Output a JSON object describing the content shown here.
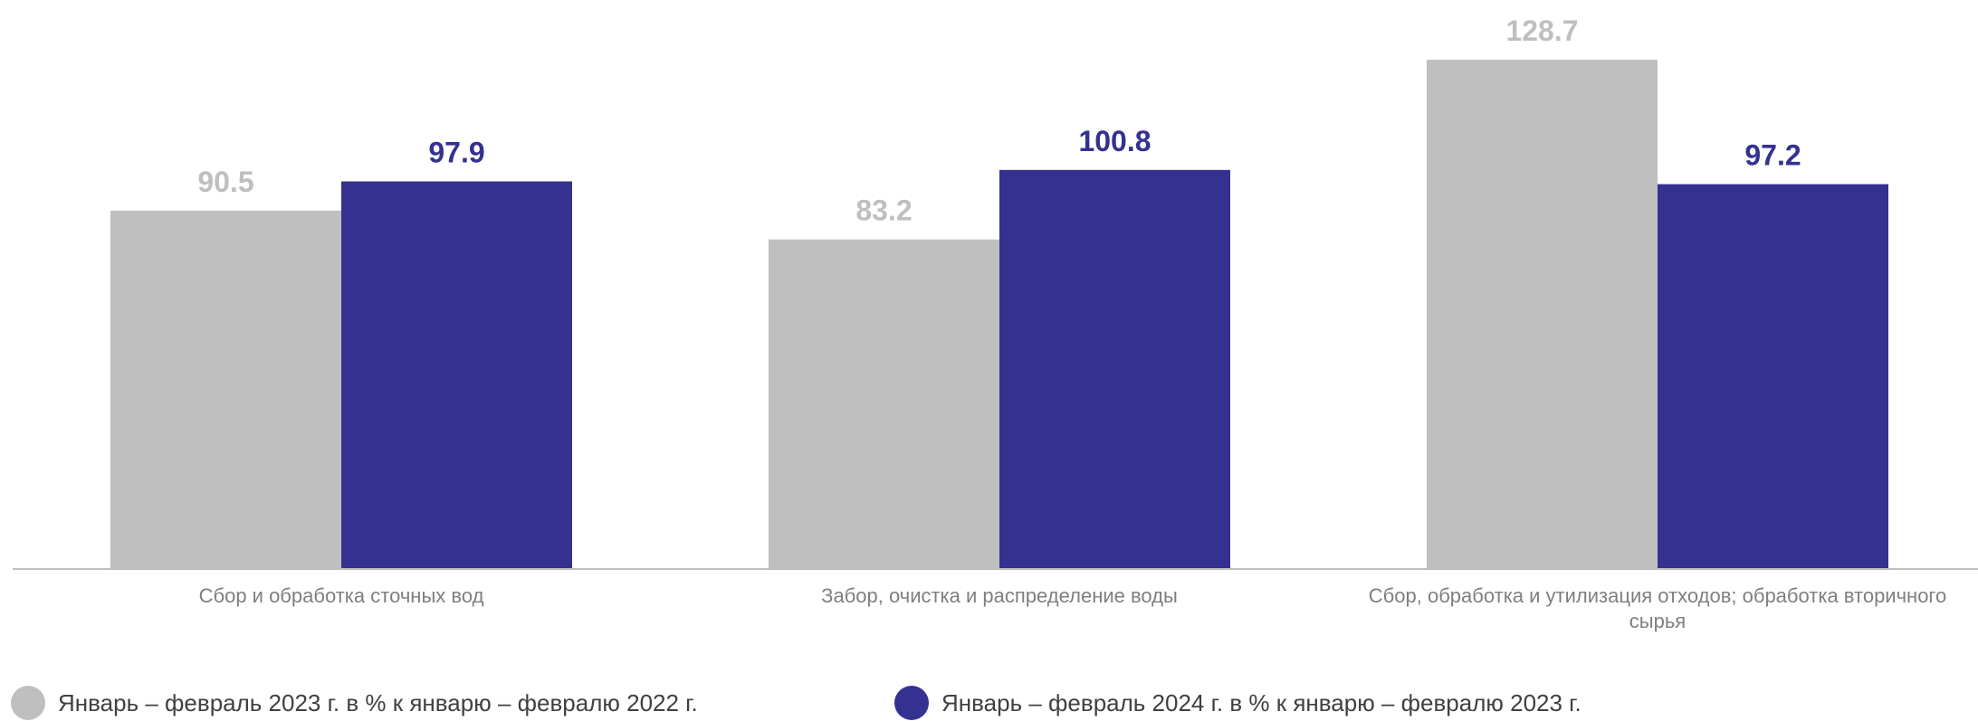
{
  "chart_data": {
    "type": "bar",
    "categories": [
      "Сбор и обработка сточных вод",
      "Забор, очистка и распределение воды",
      [
        "Сбор, обработка и утилизация отходов; обработка вторичного",
        "сырья"
      ]
    ],
    "series": [
      {
        "name": "Январь – февраль 2023 г. в % к январю – февралю 2022 г.",
        "values": [
          90.5,
          83.2,
          128.7
        ],
        "color": "#bfbfbf"
      },
      {
        "name": "Январь – февраль 2024 г. в % к январю – февралю 2023 г.",
        "values": [
          97.9,
          100.8,
          97.2
        ],
        "color": "#353191"
      }
    ],
    "value_labels": [
      [
        "90.5",
        "83.2",
        "128.7"
      ],
      [
        "97.9",
        "100.8",
        "97.2"
      ]
    ],
    "ylim": [
      0,
      131
    ],
    "grid": false,
    "legend_position": "bottom"
  }
}
